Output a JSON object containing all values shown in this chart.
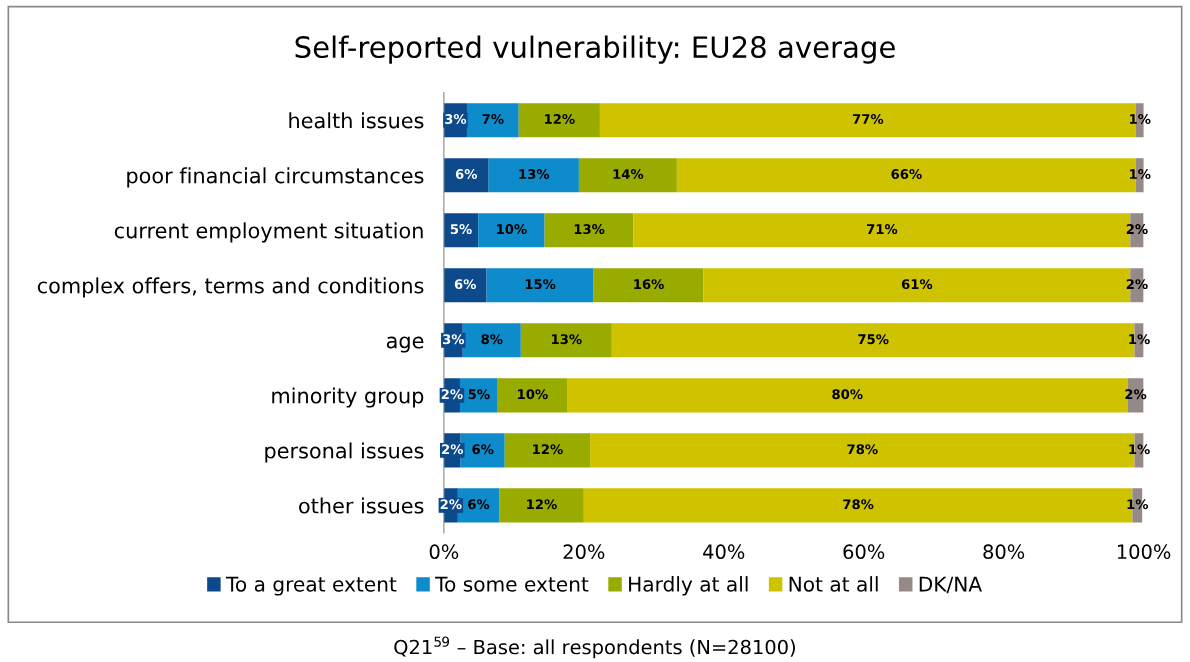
{
  "chart_data": {
    "type": "bar",
    "orientation": "horizontal",
    "stacked": true,
    "title": "Self-reported vulnerability: EU28 average",
    "categories": [
      "health issues",
      "poor financial circumstances",
      "current employment situation",
      "complex offers, terms and conditions",
      "age",
      "minority group",
      "personal issues",
      "other issues"
    ],
    "series": [
      {
        "name": "To a great extent",
        "color": "#0d4a8c",
        "values": [
          3.3,
          6.4,
          4.9,
          6.1,
          2.7,
          2.3,
          2.4,
          2.0
        ],
        "value_labels": [
          "3%",
          "6%",
          "5%",
          "6%",
          "3%",
          "2%",
          "2%",
          "2%"
        ]
      },
      {
        "name": "To some extent",
        "color": "#0d8bcb",
        "values": [
          7.4,
          12.9,
          9.5,
          15.3,
          8.3,
          5.4,
          6.3,
          5.9
        ],
        "value_labels": [
          "7%",
          "13%",
          "10%",
          "15%",
          "8%",
          "5%",
          "6%",
          "6%"
        ]
      },
      {
        "name": "Hardly at all",
        "color": "#9aab00",
        "values": [
          11.6,
          14.0,
          12.7,
          15.7,
          13.0,
          9.9,
          12.2,
          12.1
        ],
        "value_labels": [
          "12%",
          "14%",
          "13%",
          "16%",
          "13%",
          "10%",
          "12%",
          "12%"
        ]
      },
      {
        "name": "Not at all",
        "color": "#cfc300",
        "values": [
          76.6,
          65.6,
          71.0,
          61.0,
          74.7,
          80.1,
          77.8,
          78.4
        ],
        "value_labels": [
          "77%",
          "66%",
          "71%",
          "61%",
          "75%",
          "80%",
          "78%",
          "78%"
        ]
      },
      {
        "name": "DK/NA",
        "color": "#958a87",
        "values": [
          1.3,
          1.3,
          1.9,
          1.9,
          1.3,
          2.3,
          1.3,
          1.4
        ],
        "value_labels": [
          "1%",
          "1%",
          "2%",
          "2%",
          "1%",
          "2%",
          "1%",
          "1%"
        ]
      }
    ],
    "xlim": [
      0,
      100
    ],
    "xticks": [
      {
        "value": 0,
        "label": "0%"
      },
      {
        "value": 20,
        "label": "20%"
      },
      {
        "value": 40,
        "label": "40%"
      },
      {
        "value": 60,
        "label": "60%"
      },
      {
        "value": 80,
        "label": "80%"
      },
      {
        "value": 100,
        "label": "100%"
      }
    ],
    "grid": false,
    "legend": "bottom",
    "annotations": [
      "Q21$^{59}$ – Base: all respondents (N=28100)"
    ]
  }
}
